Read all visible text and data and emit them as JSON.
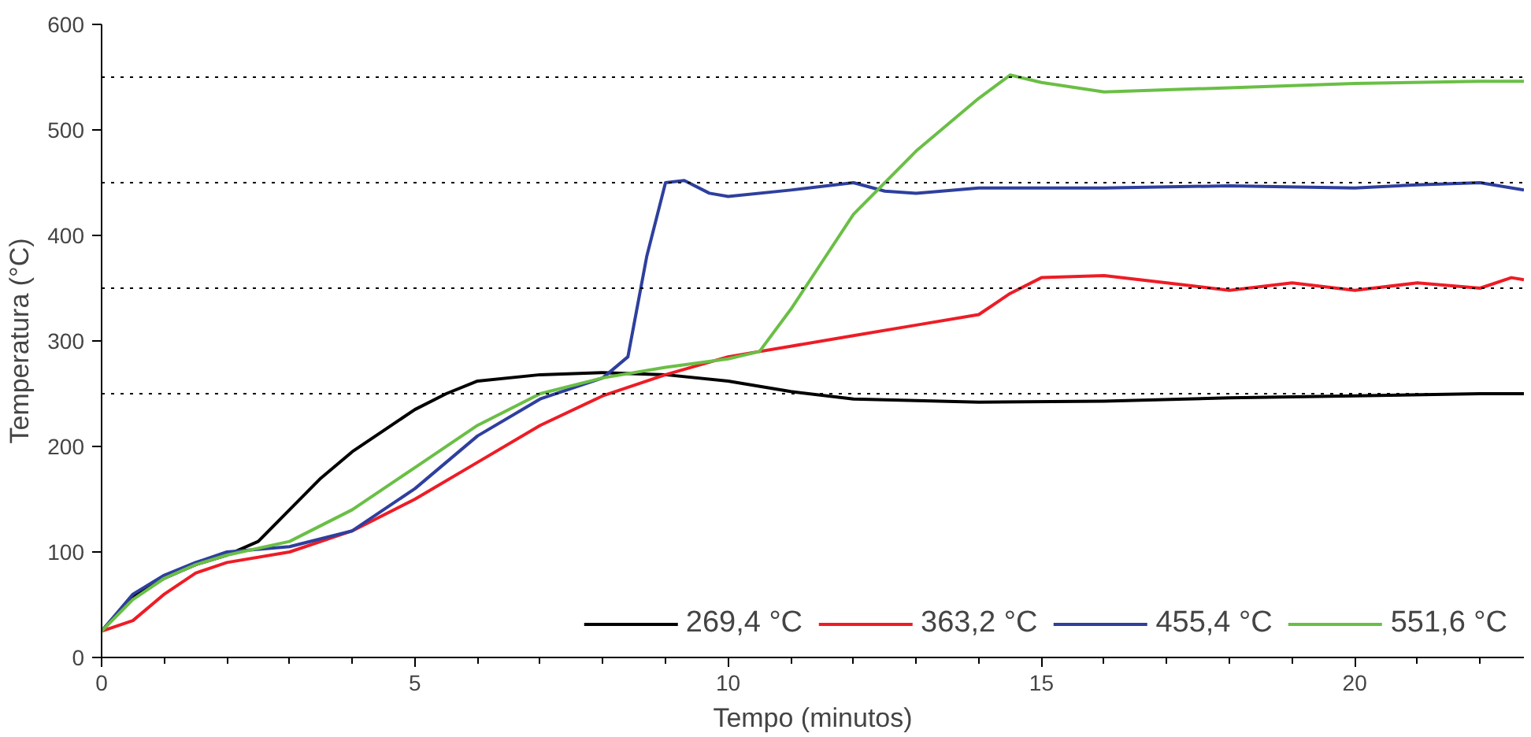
{
  "chart_data": {
    "type": "line",
    "xlabel": "Tempo (minutos)",
    "ylabel": "Temperatura (°C)",
    "xlim": [
      0,
      22.7
    ],
    "ylim": [
      0,
      600
    ],
    "xticks": [
      0,
      5,
      10,
      15,
      20
    ],
    "yticks": [
      0,
      100,
      200,
      300,
      400,
      500,
      600
    ],
    "grid": false,
    "legend": "bottom right",
    "line_style": "solid",
    "marker": "none",
    "ref_lines": [
      {
        "axis": "y",
        "value": 250,
        "color": "#000000",
        "line_style": "dotted"
      },
      {
        "axis": "y",
        "value": 350,
        "color": "#000000",
        "line_style": "dotted"
      },
      {
        "axis": "y",
        "value": 450,
        "color": "#000000",
        "line_style": "dotted"
      },
      {
        "axis": "y",
        "value": 550,
        "color": "#000000",
        "line_style": "dotted"
      }
    ],
    "series": [
      {
        "name": "269,4 °C",
        "color": "#000000",
        "x": [
          0,
          0.5,
          1,
          1.5,
          2,
          2.5,
          3,
          3.5,
          4,
          4.5,
          5,
          5.5,
          6,
          7,
          8,
          9,
          10,
          11,
          12,
          14,
          16,
          18,
          20,
          22,
          22.7
        ],
        "values": [
          25,
          58,
          75,
          88,
          97,
          110,
          140,
          170,
          195,
          215,
          235,
          250,
          262,
          268,
          270,
          268,
          262,
          252,
          245,
          242,
          243,
          246,
          248,
          250,
          250
        ]
      },
      {
        "name": "363,2 °C",
        "color": "#ee1c25",
        "x": [
          0,
          0.5,
          1,
          1.5,
          2,
          3,
          4,
          5,
          6,
          7,
          8,
          9,
          10,
          11,
          12,
          13,
          14,
          14.5,
          15,
          16,
          17,
          18,
          19,
          20,
          21,
          22,
          22.5,
          22.7
        ],
        "values": [
          25,
          35,
          60,
          80,
          90,
          100,
          120,
          150,
          185,
          220,
          248,
          268,
          285,
          295,
          305,
          315,
          325,
          345,
          360,
          362,
          355,
          348,
          355,
          348,
          355,
          350,
          360,
          358
        ]
      },
      {
        "name": "455,4 °C",
        "color": "#2e3f9e",
        "x": [
          0,
          0.5,
          1,
          1.5,
          2,
          3,
          4,
          5,
          6,
          7,
          8,
          8.4,
          8.7,
          9,
          9.3,
          9.7,
          10,
          11,
          12,
          12.5,
          13,
          14,
          16,
          18,
          20,
          21,
          22,
          22.7
        ],
        "values": [
          25,
          60,
          78,
          90,
          100,
          105,
          120,
          160,
          210,
          245,
          265,
          285,
          380,
          450,
          452,
          440,
          437,
          443,
          450,
          442,
          440,
          445,
          445,
          447,
          445,
          448,
          450,
          443
        ]
      },
      {
        "name": "551,6 °C",
        "color": "#6abf45",
        "x": [
          0,
          0.5,
          1,
          1.5,
          2,
          3,
          4,
          5,
          6,
          7,
          8,
          9,
          10,
          10.5,
          11,
          11.5,
          12,
          13,
          14,
          14.5,
          15,
          16,
          17,
          18,
          20,
          22,
          22.7
        ],
        "values": [
          25,
          55,
          75,
          88,
          97,
          110,
          140,
          180,
          220,
          250,
          265,
          275,
          283,
          290,
          330,
          375,
          420,
          480,
          530,
          552,
          545,
          536,
          538,
          540,
          544,
          546,
          546
        ]
      }
    ]
  }
}
